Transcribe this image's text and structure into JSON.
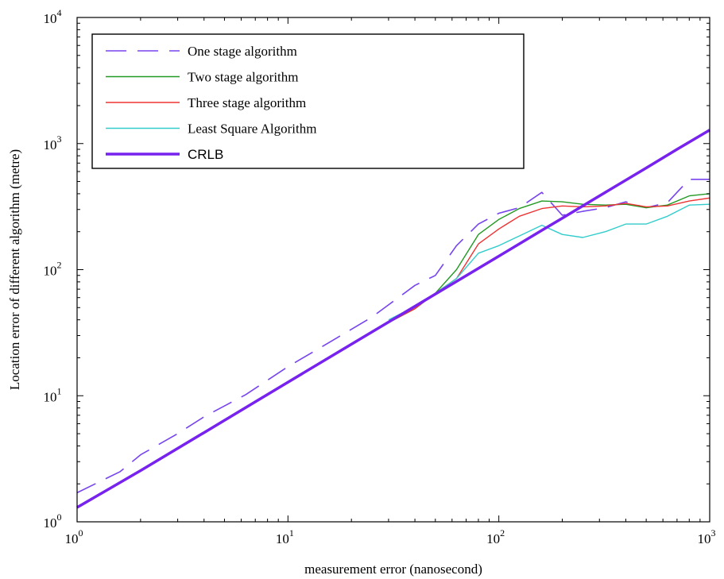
{
  "chart_data": {
    "type": "line",
    "title": "",
    "xlabel": "measurement error (nanosecond)",
    "ylabel": "Location error of different algorithm (metre)",
    "xscale": "log",
    "yscale": "log",
    "xlim": [
      1,
      1000
    ],
    "ylim": [
      1,
      10000
    ],
    "grid": false,
    "legend_position": "top-left",
    "x_ticks": [
      {
        "base": "10",
        "exp": "0",
        "value": 1
      },
      {
        "base": "10",
        "exp": "1",
        "value": 10
      },
      {
        "base": "10",
        "exp": "2",
        "value": 100
      },
      {
        "base": "10",
        "exp": "3",
        "value": 1000
      }
    ],
    "y_ticks": [
      {
        "base": "10",
        "exp": "0",
        "value": 1
      },
      {
        "base": "10",
        "exp": "1",
        "value": 10
      },
      {
        "base": "10",
        "exp": "2",
        "value": 100
      },
      {
        "base": "10",
        "exp": "3",
        "value": 1000
      },
      {
        "base": "10",
        "exp": "4",
        "value": 10000
      }
    ],
    "series": [
      {
        "name": "One stage algorithm",
        "color": "#7744ee",
        "style": "dashed",
        "width": 1.6,
        "points": [
          [
            1,
            1.7
          ],
          [
            1.6,
            2.5
          ],
          [
            2,
            3.4
          ],
          [
            3,
            5.0
          ],
          [
            4,
            6.8
          ],
          [
            6.3,
            10.2
          ],
          [
            10,
            17
          ],
          [
            16,
            27
          ],
          [
            25,
            42
          ],
          [
            40,
            75
          ],
          [
            50,
            90
          ],
          [
            63,
            155
          ],
          [
            80,
            230
          ],
          [
            100,
            280
          ],
          [
            125,
            310
          ],
          [
            160,
            410
          ],
          [
            200,
            270
          ],
          [
            250,
            290
          ],
          [
            320,
            310
          ],
          [
            400,
            345
          ],
          [
            500,
            310
          ],
          [
            630,
            340
          ],
          [
            700,
            410
          ],
          [
            800,
            520
          ],
          [
            1000,
            520
          ]
        ]
      },
      {
        "name": "Two stage algorithm",
        "color": "#229922",
        "style": "solid",
        "width": 1.4,
        "points": [
          [
            30,
            38
          ],
          [
            40,
            49
          ],
          [
            50,
            65
          ],
          [
            63,
            100
          ],
          [
            80,
            190
          ],
          [
            100,
            250
          ],
          [
            125,
            305
          ],
          [
            160,
            350
          ],
          [
            200,
            345
          ],
          [
            250,
            330
          ],
          [
            320,
            325
          ],
          [
            400,
            330
          ],
          [
            500,
            310
          ],
          [
            630,
            325
          ],
          [
            800,
            385
          ],
          [
            1000,
            400
          ]
        ]
      },
      {
        "name": "Three stage algorithm",
        "color": "#ee3333",
        "style": "solid",
        "width": 1.4,
        "points": [
          [
            30,
            38
          ],
          [
            40,
            49
          ],
          [
            50,
            65
          ],
          [
            63,
            85
          ],
          [
            80,
            160
          ],
          [
            100,
            210
          ],
          [
            125,
            265
          ],
          [
            160,
            305
          ],
          [
            200,
            320
          ],
          [
            250,
            315
          ],
          [
            320,
            320
          ],
          [
            400,
            335
          ],
          [
            500,
            315
          ],
          [
            630,
            320
          ],
          [
            800,
            350
          ],
          [
            1000,
            370
          ]
        ]
      },
      {
        "name": "Least Square Algorithm",
        "color": "#33cccc",
        "style": "solid",
        "width": 1.4,
        "points": [
          [
            30,
            40
          ],
          [
            40,
            51
          ],
          [
            50,
            65
          ],
          [
            63,
            85
          ],
          [
            80,
            135
          ],
          [
            100,
            155
          ],
          [
            125,
            185
          ],
          [
            160,
            225
          ],
          [
            200,
            190
          ],
          [
            250,
            180
          ],
          [
            320,
            200
          ],
          [
            400,
            230
          ],
          [
            500,
            230
          ],
          [
            630,
            265
          ],
          [
            800,
            325
          ],
          [
            1000,
            330
          ]
        ]
      },
      {
        "name": "CRLB",
        "color": "#7722ee",
        "style": "solid",
        "width": 3.5,
        "points": [
          [
            1,
            1.3
          ],
          [
            2,
            2.55
          ],
          [
            4,
            5.1
          ],
          [
            10,
            12.8
          ],
          [
            20,
            25.6
          ],
          [
            50,
            64
          ],
          [
            100,
            128
          ],
          [
            160,
            205
          ],
          [
            200,
            256
          ],
          [
            300,
            385
          ],
          [
            500,
            640
          ],
          [
            700,
            900
          ],
          [
            1000,
            1280
          ]
        ]
      }
    ]
  }
}
